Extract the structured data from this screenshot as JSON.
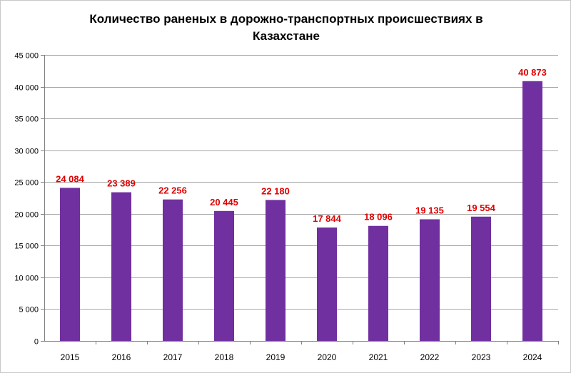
{
  "chart_data": {
    "type": "bar",
    "title": "Количество раненых в дорожно-транспортных  происшествиях  в Казахстане",
    "categories": [
      "2015",
      "2016",
      "2017",
      "2018",
      "2019",
      "2020",
      "2021",
      "2022",
      "2023",
      "2024"
    ],
    "values": [
      24084,
      23389,
      22256,
      20445,
      22180,
      17844,
      18096,
      19135,
      19554,
      40873
    ],
    "data_labels": [
      "24 084",
      "23 389",
      "22 256",
      "20 445",
      "22 180",
      "17 844",
      "18 096",
      "19 135",
      "19 554",
      "40 873"
    ],
    "y_ticks": [
      0,
      5000,
      10000,
      15000,
      20000,
      25000,
      30000,
      35000,
      40000,
      45000
    ],
    "y_tick_labels": [
      "0",
      "5 000",
      "10 000",
      "15 000",
      "20 000",
      "25 000",
      "30 000",
      "35 000",
      "40 000",
      "45 000"
    ],
    "ylim": [
      0,
      45000
    ],
    "xlabel": "",
    "ylabel": "",
    "grid": true,
    "legend": "none",
    "colors": {
      "bar": "#7030a0",
      "data_label": "#e00000",
      "grid": "#a6a6a6",
      "axis": "#808080"
    }
  }
}
